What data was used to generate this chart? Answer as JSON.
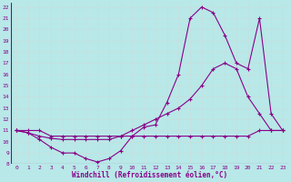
{
  "xlabel": "Windchill (Refroidissement éolien,°C)",
  "background_color": "#b8e8e8",
  "line_color": "#880088",
  "grid_color": "#c8dede",
  "xlim": [
    -0.5,
    23.5
  ],
  "ylim": [
    8,
    22.4
  ],
  "yticks": [
    8,
    9,
    10,
    11,
    12,
    13,
    14,
    15,
    16,
    17,
    18,
    19,
    20,
    21,
    22
  ],
  "xticks": [
    0,
    1,
    2,
    3,
    4,
    5,
    6,
    7,
    8,
    9,
    10,
    11,
    12,
    13,
    14,
    15,
    16,
    17,
    18,
    19,
    20,
    21,
    22,
    23
  ],
  "line1_x": [
    0,
    1,
    2,
    3,
    4,
    5,
    6,
    7,
    8,
    9,
    10,
    11,
    12,
    13,
    14,
    15,
    16,
    17,
    18,
    19,
    20,
    21,
    22,
    23
  ],
  "line1_y": [
    11.0,
    10.8,
    10.2,
    9.5,
    9.0,
    9.0,
    8.5,
    8.2,
    8.5,
    9.2,
    10.5,
    11.3,
    11.5,
    13.5,
    16.0,
    21.0,
    22.0,
    21.5,
    19.5,
    17.0,
    16.5,
    21.0,
    12.5,
    11.0
  ],
  "line2_x": [
    0,
    1,
    2,
    3,
    4,
    5,
    6,
    7,
    8,
    9,
    10,
    11,
    12,
    13,
    14,
    15,
    16,
    17,
    18,
    19,
    20,
    21,
    22,
    23
  ],
  "line2_y": [
    11.0,
    10.8,
    10.5,
    10.3,
    10.2,
    10.2,
    10.2,
    10.2,
    10.2,
    10.5,
    11.0,
    11.5,
    12.0,
    12.5,
    13.0,
    13.8,
    15.0,
    16.5,
    17.0,
    16.5,
    14.0,
    12.5,
    11.0,
    11.0
  ],
  "line3_x": [
    0,
    1,
    2,
    3,
    4,
    5,
    6,
    7,
    8,
    9,
    10,
    11,
    12,
    13,
    14,
    15,
    16,
    17,
    18,
    19,
    20,
    21,
    22,
    23
  ],
  "line3_y": [
    11.0,
    11.0,
    11.0,
    10.5,
    10.5,
    10.5,
    10.5,
    10.5,
    10.5,
    10.5,
    10.5,
    10.5,
    10.5,
    10.5,
    10.5,
    10.5,
    10.5,
    10.5,
    10.5,
    10.5,
    10.5,
    11.0,
    11.0,
    11.0
  ]
}
